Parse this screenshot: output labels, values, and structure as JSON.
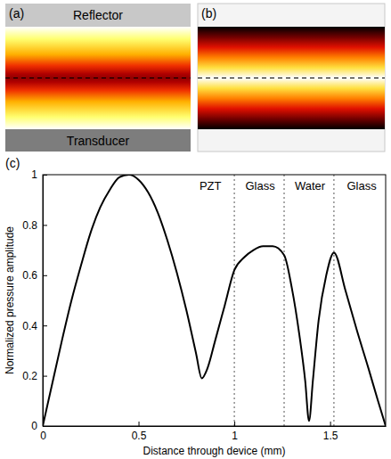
{
  "panels": [
    {
      "letter": "(a)",
      "top_label": "Reflector",
      "bottom_label": "Transducer"
    },
    {
      "letter": "(b)"
    }
  ],
  "chart_data": {
    "type": "line",
    "panel_label": "(c)",
    "x_label": "Distance through device (mm)",
    "y_label": "Normalized pressure amplitude",
    "x": [
      0,
      0.05,
      0.1,
      0.15,
      0.2,
      0.25,
      0.3,
      0.35,
      0.4,
      0.45,
      0.5,
      0.55,
      0.6,
      0.65,
      0.7,
      0.75,
      0.8,
      0.83,
      0.86,
      0.9,
      0.95,
      1.0,
      1.05,
      1.1,
      1.15,
      1.2,
      1.26,
      1.3,
      1.34,
      1.37,
      1.39,
      1.41,
      1.44,
      1.48,
      1.52,
      1.58,
      1.64,
      1.7,
      1.75,
      1.79
    ],
    "series": [
      {
        "color": "#000000",
        "line_style": "solid",
        "values": [
          0,
          0.17,
          0.34,
          0.5,
          0.64,
          0.77,
          0.87,
          0.94,
          0.99,
          1.0,
          0.98,
          0.93,
          0.85,
          0.74,
          0.61,
          0.46,
          0.29,
          0.19,
          0.23,
          0.34,
          0.48,
          0.62,
          0.67,
          0.7,
          0.715,
          0.715,
          0.68,
          0.55,
          0.36,
          0.18,
          0.02,
          0.18,
          0.42,
          0.6,
          0.69,
          0.54,
          0.38,
          0.23,
          0.1,
          0
        ]
      }
    ],
    "xlim": [
      0,
      1.79
    ],
    "ylim": [
      0,
      1
    ],
    "xticks": [
      0,
      0.5,
      1,
      1.5
    ],
    "yticks": [
      0,
      0.2,
      0.4,
      0.6,
      0.8,
      1
    ],
    "grid": false,
    "regions": [
      {
        "label": "PZT",
        "from": 0,
        "to": 1.0
      },
      {
        "label": "Glass",
        "from": 1.0,
        "to": 1.26
      },
      {
        "label": "Water",
        "from": 1.26,
        "to": 1.52
      },
      {
        "label": "Glass",
        "from": 1.52,
        "to": 1.79
      }
    ]
  }
}
